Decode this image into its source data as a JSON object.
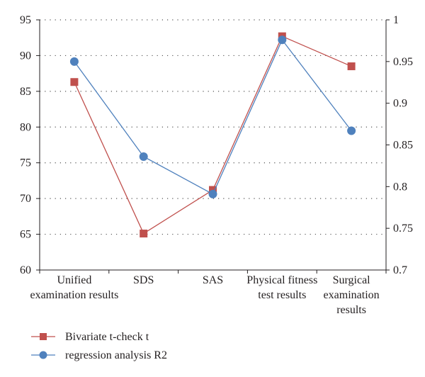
{
  "chart_data": {
    "type": "line",
    "categories": [
      [
        "Unified",
        "examination results"
      ],
      [
        "SDS"
      ],
      [
        "SAS"
      ],
      [
        "Physical fitness",
        "test results"
      ],
      [
        "Surgical",
        "examination",
        "results"
      ]
    ],
    "series": [
      {
        "name": "Bivariate t-check t",
        "axis": "left",
        "color": "#c0504d",
        "marker": "square",
        "values": [
          86.3,
          65.1,
          71.2,
          92.7,
          88.5
        ]
      },
      {
        "name": "regression analysis R2",
        "axis": "right",
        "color": "#4f81bd",
        "marker": "circle",
        "values": [
          0.95,
          0.836,
          0.791,
          0.976,
          0.867
        ]
      }
    ],
    "y_left": {
      "ylim": [
        60,
        95
      ],
      "ticks": [
        60,
        65,
        70,
        75,
        80,
        85,
        90,
        95
      ],
      "tick_labels": [
        "60",
        "65",
        "70",
        "75",
        "80",
        "85",
        "90",
        "95"
      ]
    },
    "y_right": {
      "ylim": [
        0.7,
        1
      ],
      "ticks": [
        0.7,
        0.75,
        0.8,
        0.85,
        0.9,
        0.95,
        1
      ],
      "tick_labels": [
        "0.7",
        "0.75",
        "0.8",
        "0.85",
        "0.9",
        "0.95",
        "1"
      ]
    },
    "grid": "horizontal-dotted",
    "legend_position": "bottom-left"
  }
}
